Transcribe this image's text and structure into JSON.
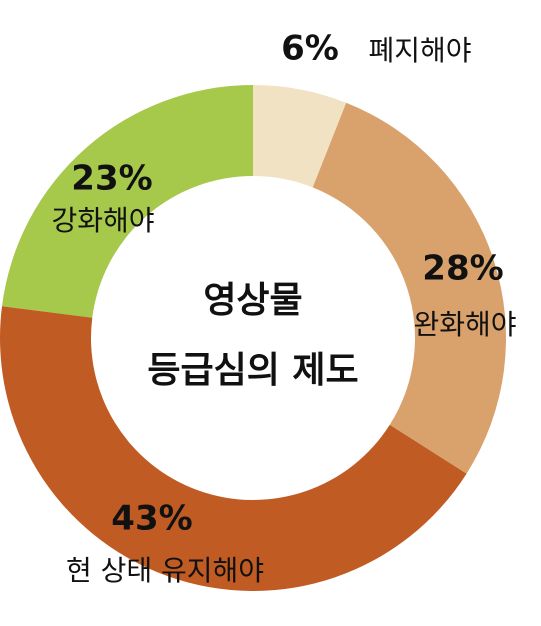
{
  "chart_data": {
    "type": "donut",
    "title": [
      "영상물",
      "등급심의 제도"
    ],
    "categories": [
      "폐지해야",
      "완화해야",
      "현 상태 유지해야",
      "강화해야"
    ],
    "values": [
      6,
      28,
      43,
      23
    ],
    "value_labels": [
      "6%",
      "28%",
      "43%",
      "23%"
    ],
    "colors": [
      "#f2e2c4",
      "#d9a16c",
      "#c05b23",
      "#a6c84b"
    ]
  }
}
